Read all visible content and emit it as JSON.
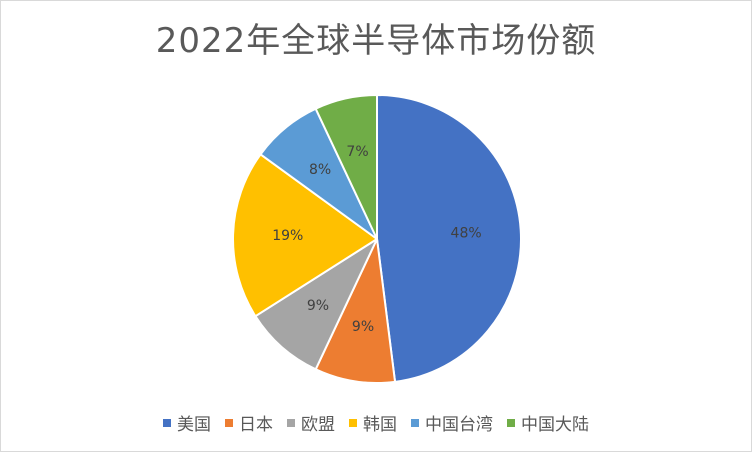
{
  "chart_data": {
    "type": "pie",
    "title": "2022年全球半导体市场份额",
    "legend_position": "bottom",
    "start_angle_deg": 0,
    "direction": "clockwise",
    "slices": [
      {
        "name": "美国",
        "value": 48,
        "label": "48%",
        "color": "#4472C4"
      },
      {
        "name": "日本",
        "value": 9,
        "label": "9%",
        "color": "#ED7D31"
      },
      {
        "name": "欧盟",
        "value": 9,
        "label": "9%",
        "color": "#A5A5A5"
      },
      {
        "name": "韩国",
        "value": 19,
        "label": "19%",
        "color": "#FFC000"
      },
      {
        "name": "中国台湾",
        "value": 8,
        "label": "8%",
        "color": "#5B9BD5"
      },
      {
        "name": "中国大陆",
        "value": 7,
        "label": "7%",
        "color": "#70AD47"
      }
    ]
  }
}
